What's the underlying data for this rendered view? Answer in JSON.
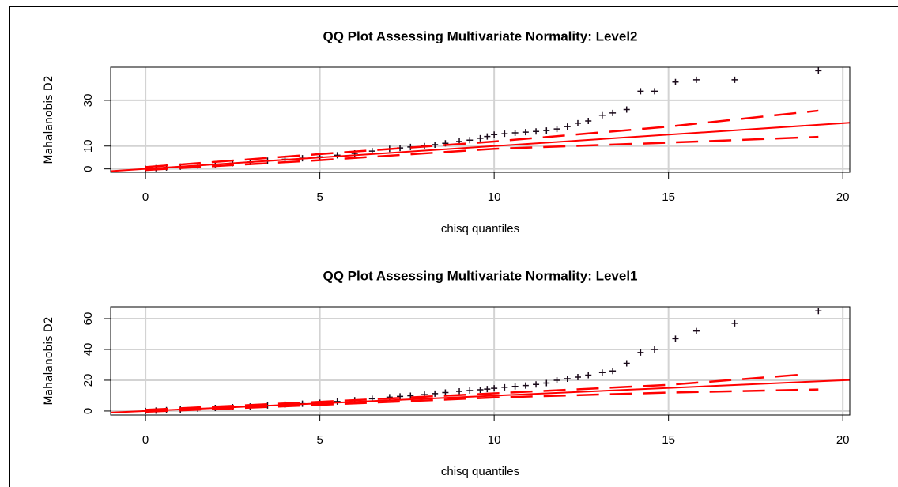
{
  "chart_data": [
    {
      "type": "scatter",
      "title": "QQ Plot Assessing Multivariate Normality: Level2",
      "xlabel": "chisq quantiles",
      "ylabel": "Mahalanobis D2",
      "xlim": [
        -1,
        20.2
      ],
      "ylim": [
        -1.5,
        44.5
      ],
      "xticks": [
        0,
        5,
        10,
        15,
        20
      ],
      "yticks": [
        0,
        10,
        30
      ],
      "grid": true,
      "series": [
        {
          "type": "scatter",
          "marker": "+",
          "color": "#1a0a1a",
          "x": [
            0,
            0.3,
            0.6,
            1,
            1.5,
            2,
            2.5,
            3,
            3.5,
            4,
            4.5,
            5,
            5.5,
            6,
            6.5,
            7,
            7.3,
            7.6,
            8,
            8.3,
            8.6,
            9,
            9.3,
            9.6,
            9.8,
            10,
            10.3,
            10.6,
            10.9,
            11.2,
            11.5,
            11.8,
            12.1,
            12.4,
            12.7,
            13.1,
            13.4,
            13.8,
            14.2,
            14.6,
            15.2,
            15.8,
            16.9,
            19.3
          ],
          "values": [
            0,
            0.3,
            0.6,
            1,
            1.5,
            2,
            2.5,
            3,
            3.6,
            4.2,
            4.7,
            5.3,
            6,
            6.8,
            7.8,
            8.8,
            9.2,
            9.6,
            10,
            10.6,
            11.2,
            12,
            12.6,
            13.4,
            14.2,
            15,
            15.4,
            15.8,
            16.1,
            16.4,
            16.8,
            17.5,
            18.5,
            20,
            21,
            23.5,
            24.5,
            26,
            34,
            34,
            38,
            39,
            39,
            43
          ]
        },
        {
          "type": "line",
          "style": "solid",
          "color": "#ff0000",
          "x": [
            -1,
            20.2
          ],
          "values": [
            -1,
            20.2
          ]
        },
        {
          "type": "line",
          "style": "dashed",
          "color": "#ff0000",
          "x": [
            0,
            5,
            10,
            15,
            19.3
          ],
          "values": [
            0.8,
            6.5,
            12,
            18.5,
            25.5
          ]
        },
        {
          "type": "line",
          "style": "dashed",
          "color": "#ff0000",
          "x": [
            0,
            5,
            10,
            15,
            19.3
          ],
          "values": [
            -0.5,
            3.8,
            8.8,
            11.5,
            14
          ]
        }
      ]
    },
    {
      "type": "scatter",
      "title": "QQ Plot Assessing Multivariate Normality: Level1",
      "xlabel": "chisq quantiles",
      "ylabel": "Mahalanobis D2",
      "xlim": [
        -1,
        20.2
      ],
      "ylim": [
        -2.6,
        67.7
      ],
      "xticks": [
        0,
        5,
        10,
        15,
        20
      ],
      "yticks": [
        0,
        20,
        40,
        60
      ],
      "grid": true,
      "series": [
        {
          "type": "scatter",
          "marker": "+",
          "color": "#1a0a1a",
          "x": [
            0,
            0.3,
            0.6,
            1,
            1.5,
            2,
            2.5,
            3,
            3.5,
            4,
            4.5,
            5,
            5.5,
            6,
            6.5,
            7,
            7.3,
            7.6,
            8,
            8.3,
            8.6,
            9,
            9.3,
            9.6,
            9.8,
            10,
            10.3,
            10.6,
            10.9,
            11.2,
            11.5,
            11.8,
            12.1,
            12.4,
            12.7,
            13.1,
            13.4,
            13.8,
            14.2,
            14.6,
            15.2,
            15.8,
            16.9,
            19.3
          ],
          "values": [
            0,
            0.3,
            0.6,
            1,
            1.5,
            2,
            2.5,
            3,
            3.6,
            4.2,
            4.8,
            5.4,
            6.2,
            7,
            8,
            9,
            9.5,
            10,
            10.7,
            11.3,
            12,
            12.8,
            13.3,
            13.8,
            14.3,
            14.8,
            15.4,
            16,
            16.6,
            17.3,
            18.2,
            20,
            21,
            22,
            23.3,
            25,
            26,
            31,
            38,
            40,
            47,
            52,
            57,
            65
          ]
        },
        {
          "type": "line",
          "style": "solid",
          "color": "#ff0000",
          "x": [
            -1,
            20.2
          ],
          "values": [
            -1,
            20.2
          ]
        },
        {
          "type": "line",
          "style": "dashed",
          "color": "#ff0000",
          "x": [
            0,
            5,
            10,
            15,
            19
          ],
          "values": [
            0.8,
            6,
            11.5,
            17,
            24
          ]
        },
        {
          "type": "line",
          "style": "dashed",
          "color": "#ff0000",
          "x": [
            0,
            5,
            10,
            15,
            19.3
          ],
          "values": [
            -0.5,
            4,
            8.8,
            12,
            14
          ]
        }
      ]
    }
  ]
}
